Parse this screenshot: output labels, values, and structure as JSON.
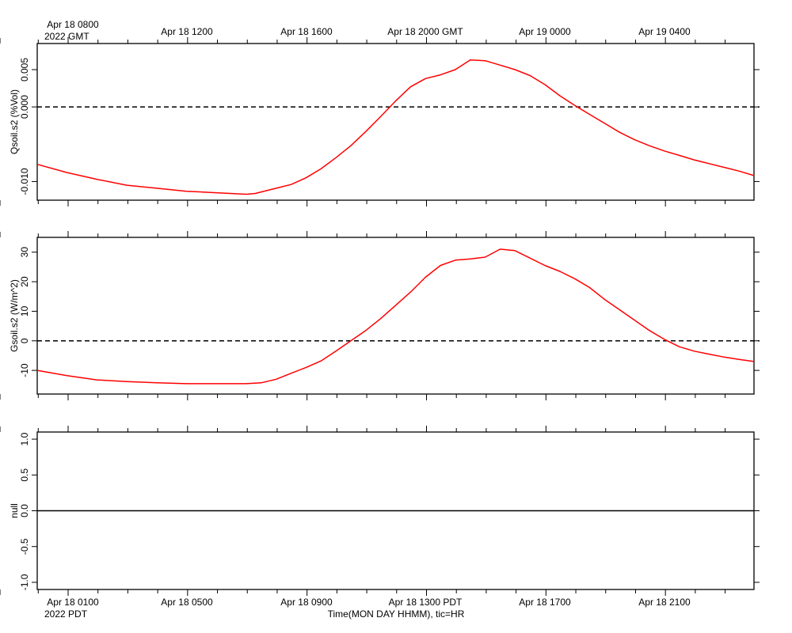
{
  "top_axis": {
    "tick_labels": [
      "Apr 18 0800",
      "Apr 18 1200",
      "Apr 18 1600",
      "Apr 18 2000 GMT",
      "Apr 19 0000",
      "Apr 19 0400"
    ],
    "year_label": "2022 GMT"
  },
  "bottom_axis": {
    "tick_labels": [
      "Apr 18 0100",
      "Apr 18 0500",
      "Apr 18 0900",
      "Apr 18 1300 PDT",
      "Apr 18 1700",
      "Apr 18 2100"
    ],
    "year_label": "2022 PDT",
    "xlabel": "Time(MON DAY HHMM), tic=HR"
  },
  "colors": {
    "series": "#ff0000",
    "axis": "#000000"
  },
  "chart_data": [
    {
      "type": "line",
      "ylabel": "Qsoil.s2 (%Vol)",
      "x_unit": "hours since Apr 18 0000 PDT",
      "xlim": [
        0,
        24
      ],
      "ylim": [
        -0.0125,
        0.0085
      ],
      "yticks": [
        0.005,
        0.0,
        -0.01
      ],
      "ytick_labels": [
        "0.005",
        "0.000",
        "-0.010"
      ],
      "reference_line": {
        "y": 0.0,
        "style": "dashed"
      },
      "series": [
        {
          "x": [
            0,
            1,
            2,
            3,
            4,
            5,
            6,
            7,
            7.3,
            8,
            8.5,
            9,
            9.5,
            10,
            10.5,
            11,
            11.5,
            12,
            12.5,
            13,
            13.5,
            14,
            14.5,
            15,
            15.5,
            16,
            16.5,
            17,
            17.5,
            18,
            18.5,
            19,
            19.5,
            20,
            20.5,
            21,
            21.5,
            22,
            22.5,
            23,
            23.5,
            24
          ],
          "y": [
            -0.0077,
            -0.0088,
            -0.0097,
            -0.0105,
            -0.0109,
            -0.0113,
            -0.0115,
            -0.0117,
            -0.0116,
            -0.0109,
            -0.0104,
            -0.0095,
            -0.0083,
            -0.0068,
            -0.0052,
            -0.0033,
            -0.0013,
            0.0008,
            0.0027,
            0.0038,
            0.0043,
            0.005,
            0.0063,
            0.0062,
            0.0056,
            0.005,
            0.0042,
            0.003,
            0.0015,
            0.0002,
            -0.001,
            -0.0022,
            -0.0034,
            -0.0044,
            -0.0052,
            -0.0059,
            -0.0065,
            -0.0071,
            -0.0076,
            -0.0081,
            -0.0086,
            -0.0092
          ]
        }
      ]
    },
    {
      "type": "line",
      "ylabel": "Gsoil.s2 (W/m^2)",
      "x_unit": "hours since Apr 18 0000 PDT",
      "xlim": [
        0,
        24
      ],
      "ylim": [
        -18,
        35
      ],
      "yticks": [
        30,
        20,
        10,
        0,
        -10
      ],
      "ytick_labels": [
        "30",
        "20",
        "10",
        "0",
        "-10"
      ],
      "reference_line": {
        "y": 0,
        "style": "dashed"
      },
      "series": [
        {
          "x": [
            0,
            1,
            2,
            3,
            4,
            5,
            6,
            7,
            7.5,
            8,
            8.5,
            9,
            9.5,
            10,
            10.5,
            11,
            11.5,
            12,
            12.5,
            13,
            13.5,
            14,
            14.5,
            15,
            15.5,
            16,
            16.5,
            17,
            17.5,
            18,
            18.5,
            19,
            19.5,
            20,
            20.5,
            21,
            21.5,
            22,
            22.5,
            23,
            23.5,
            24
          ],
          "y": [
            -10,
            -11.8,
            -13.2,
            -13.8,
            -14.2,
            -14.5,
            -14.5,
            -14.5,
            -14.2,
            -13,
            -11,
            -9,
            -6.8,
            -3.5,
            0,
            3.5,
            7.5,
            12,
            16.5,
            21.5,
            25.5,
            27.3,
            27.7,
            28.3,
            31,
            30.5,
            28,
            25.5,
            23.5,
            21,
            18,
            14,
            10.5,
            7,
            3.5,
            0.5,
            -2,
            -3.5,
            -4.5,
            -5.5,
            -6.3,
            -7
          ]
        }
      ]
    },
    {
      "type": "line",
      "ylabel": "null",
      "xlim": [
        0,
        24
      ],
      "ylim": [
        -1.1,
        1.1
      ],
      "yticks": [
        1.0,
        0.5,
        0.0,
        -0.5,
        -1.0
      ],
      "ytick_labels": [
        "1.0",
        "0.5",
        "0.0",
        "-0.5",
        "-1.0"
      ],
      "reference_line": {
        "y": 0.0,
        "style": "solid"
      },
      "series": []
    }
  ]
}
